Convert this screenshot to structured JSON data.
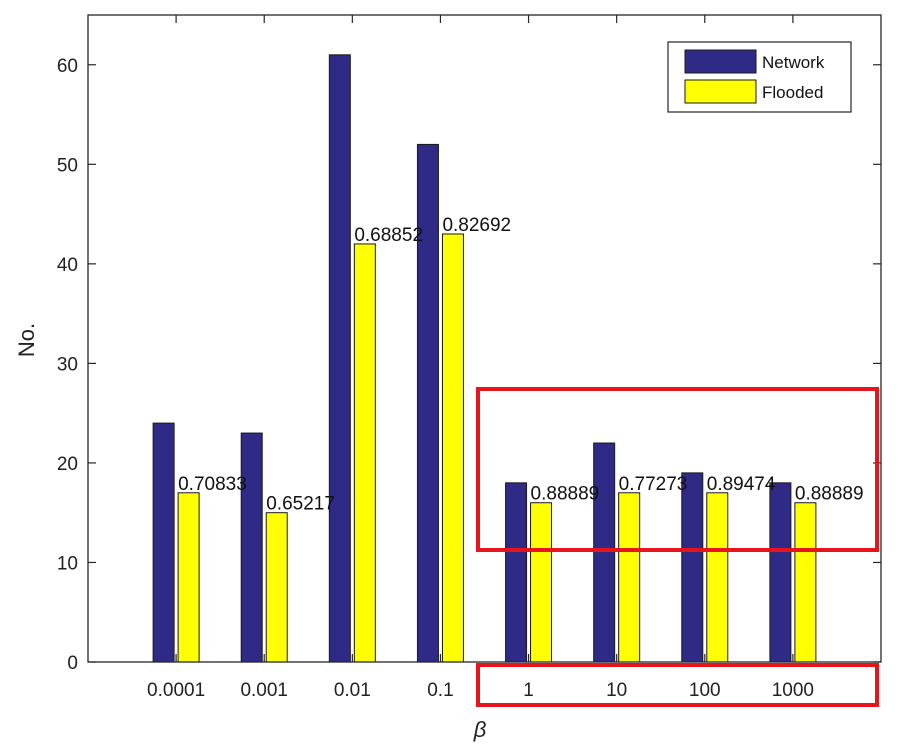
{
  "chart_data": {
    "type": "bar",
    "title": "",
    "xlabel": "β",
    "ylabel": "No.",
    "ylim": [
      0,
      65
    ],
    "yticks": [
      0,
      10,
      20,
      30,
      40,
      50,
      60
    ],
    "grid": false,
    "legend_position": "top-right",
    "categories": [
      "0.0001",
      "0.001",
      "0.01",
      "0.1",
      "1",
      "10",
      "100",
      "1000"
    ],
    "series": [
      {
        "name": "Network",
        "color": "#2e2a85",
        "values": [
          24,
          23,
          61,
          52,
          18,
          22,
          19,
          18
        ]
      },
      {
        "name": "Flooded",
        "color": "#ffff00",
        "values": [
          17,
          15,
          42,
          43,
          16,
          17,
          17,
          16
        ]
      }
    ],
    "data_labels": [
      "0.70833",
      "0.65217",
      "0.68852",
      "0.82692",
      "0.88889",
      "0.77273",
      "0.89474",
      "0.88889"
    ],
    "annotations": [
      {
        "type": "highlight-box",
        "color": "#e8141b",
        "covers": "bars 1–1000"
      },
      {
        "type": "highlight-box",
        "color": "#e8141b",
        "covers": "tick labels 1–1000"
      }
    ]
  }
}
